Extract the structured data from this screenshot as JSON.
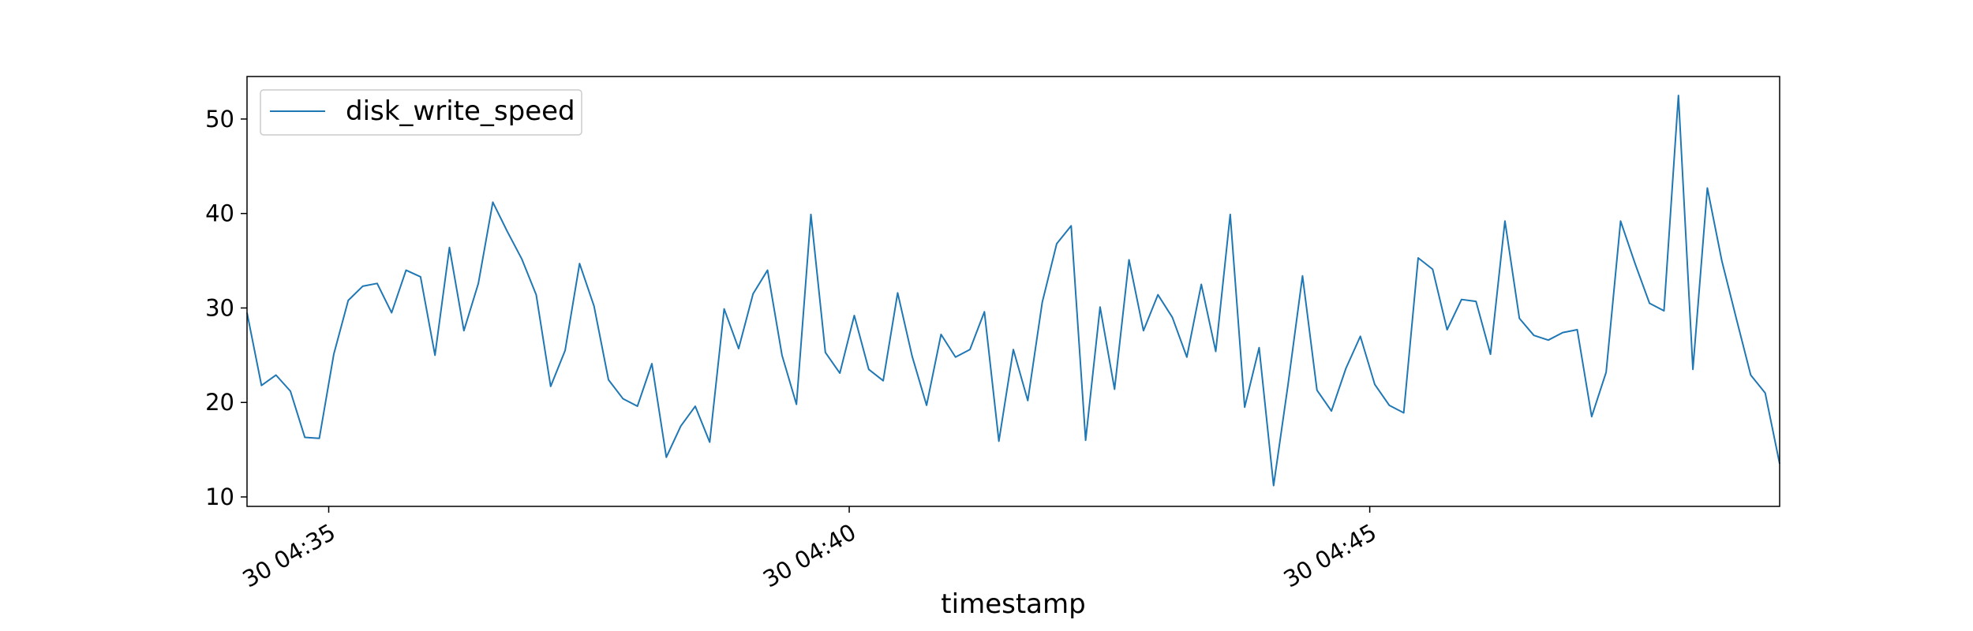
{
  "chart_data": {
    "type": "line",
    "xlabel": "timestamp",
    "ylabel": "",
    "title": "",
    "ylim": [
      9.0,
      54.5
    ],
    "grid": false,
    "legend": {
      "placement": "upper-left"
    },
    "x_ticks": [
      {
        "label": "30 04:35",
        "value": 5.65
      },
      {
        "label": "30 04:40",
        "value": 41.65
      },
      {
        "label": "30 04:45",
        "value": 77.65
      }
    ],
    "y_ticks": [
      10,
      20,
      30,
      40,
      50
    ],
    "series": [
      {
        "name": "disk_write_speed",
        "color": "#1f77b4",
        "values": [
          29.5,
          21.8,
          22.9,
          21.2,
          16.3,
          16.2,
          25.1,
          30.8,
          32.3,
          32.6,
          29.5,
          34.0,
          33.3,
          25.0,
          36.4,
          27.6,
          32.6,
          41.2,
          38.1,
          35.2,
          31.4,
          21.7,
          25.5,
          34.7,
          30.2,
          22.4,
          20.4,
          19.6,
          24.1,
          14.2,
          17.5,
          19.6,
          15.8,
          29.9,
          25.7,
          31.5,
          34.0,
          25.0,
          19.8,
          39.9,
          25.3,
          23.1,
          29.2,
          23.5,
          22.3,
          31.6,
          24.9,
          19.7,
          27.2,
          24.8,
          25.6,
          29.6,
          15.9,
          25.6,
          20.2,
          30.6,
          36.8,
          38.7,
          16.0,
          30.1,
          21.4,
          35.1,
          27.6,
          31.4,
          29.0,
          24.8,
          32.5,
          25.4,
          39.9,
          19.5,
          25.8,
          11.2,
          21.9,
          33.4,
          21.3,
          19.1,
          23.6,
          27.0,
          21.9,
          19.7,
          18.9,
          35.3,
          34.1,
          27.7,
          30.9,
          30.7,
          25.1,
          39.2,
          28.9,
          27.1,
          26.6,
          27.4,
          27.7,
          18.5,
          23.2,
          39.2,
          34.7,
          30.5,
          29.7,
          52.5,
          23.5,
          42.7,
          35.0,
          28.9,
          22.9,
          21.0,
          13.5
        ]
      }
    ]
  }
}
